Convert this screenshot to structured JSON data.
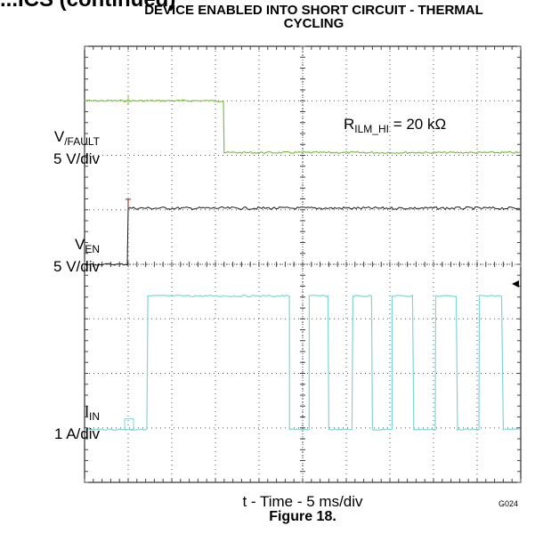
{
  "page": {
    "cut_heading": "...ICS (continued)",
    "figure_caption": "Figure 18.",
    "figure_id": "G024"
  },
  "chart_data": {
    "type": "line",
    "title": [
      "DEVICE ENABLED INTO SHORT CIRCUIT - THERMAL",
      "CYCLING"
    ],
    "xlabel": "t - Time - 5 ms/div",
    "x_divisions": 10,
    "y_divisions": 8,
    "grid": true,
    "annotation": {
      "main": "R",
      "sub": "ILM_HI",
      "rest": " = 20 kΩ"
    },
    "channels": [
      {
        "label_main": "V",
        "label_sub": "/FAULT",
        "scale": "5 V/div",
        "color": "#7cc242",
        "high_level_div": 7.0,
        "low_level_div": 6.05,
        "fall_time_div": 3.2
      },
      {
        "label_main": "V",
        "label_sub": "EN",
        "scale": "5 V/div",
        "color": "#1a1a1a",
        "low_level_div": 4.0,
        "high_level_div": 5.03,
        "rise_time_div": 1.0
      },
      {
        "label_main": "I",
        "label_sub": "IN",
        "scale": "1 A/div",
        "color": "#7fd6d6",
        "low_level_div": 0.97,
        "high_level_div": 3.42,
        "rise_time_div": 1.45,
        "on_intervals_div": [
          [
            1.45,
            4.7
          ],
          [
            5.15,
            5.6
          ],
          [
            6.15,
            6.6
          ],
          [
            7.05,
            7.55
          ],
          [
            8.05,
            8.55
          ],
          [
            9.05,
            9.6
          ]
        ]
      }
    ]
  }
}
